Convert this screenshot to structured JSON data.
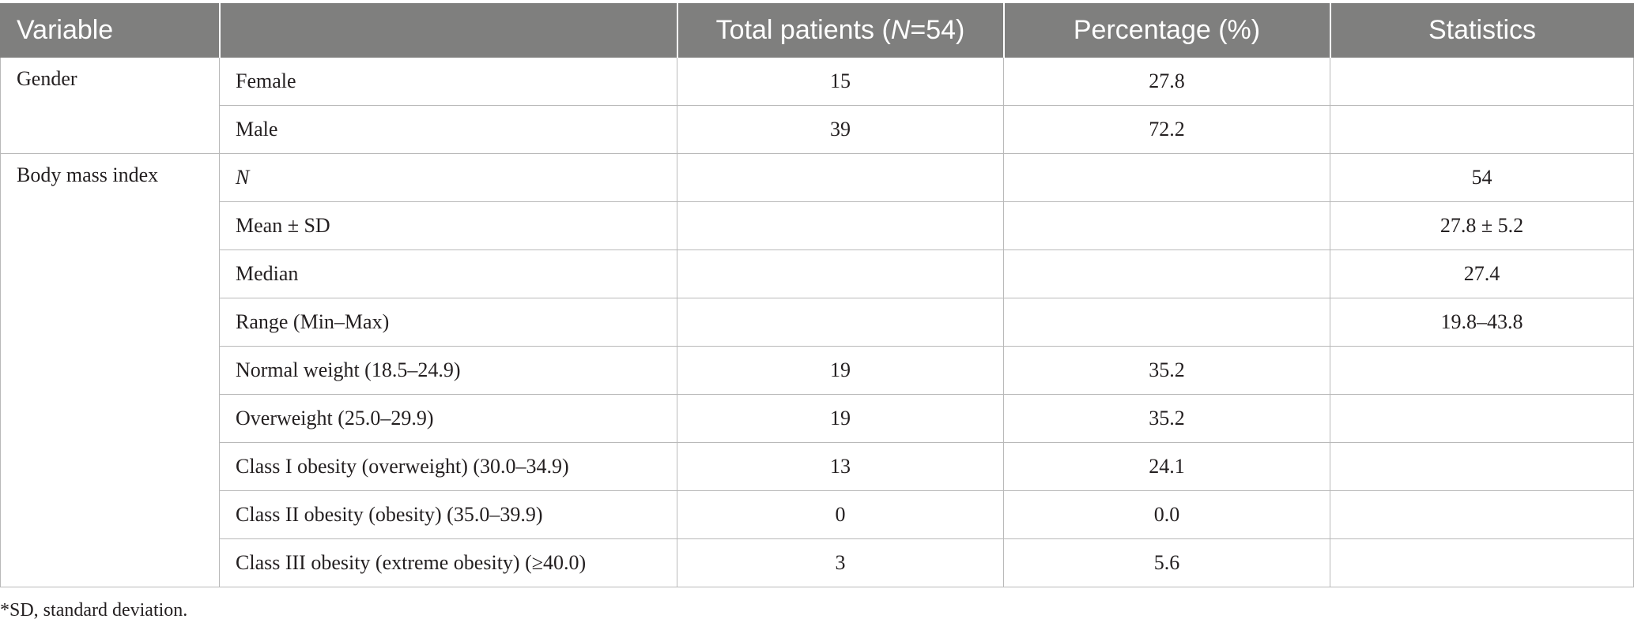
{
  "header": {
    "variable": "Variable",
    "category": "",
    "total_patients_prefix": "Total patients (",
    "total_patients_n": "N",
    "total_patients_suffix": "=54)",
    "percentage": "Percentage (%)",
    "statistics": "Statistics"
  },
  "groups": {
    "gender": "Gender",
    "bmi": "Body mass index"
  },
  "rows": [
    {
      "label": "Female",
      "total": "15",
      "percentage": "27.8",
      "statistics": ""
    },
    {
      "label": "Male",
      "total": "39",
      "percentage": "72.2",
      "statistics": ""
    },
    {
      "label": "N",
      "total": "",
      "percentage": "",
      "statistics": "54"
    },
    {
      "label": "Mean ± SD",
      "total": "",
      "percentage": "",
      "statistics": "27.8 ± 5.2"
    },
    {
      "label": "Median",
      "total": "",
      "percentage": "",
      "statistics": "27.4"
    },
    {
      "label": "Range (Min–Max)",
      "total": "",
      "percentage": "",
      "statistics": "19.8–43.8"
    },
    {
      "label": "Normal weight (18.5–24.9)",
      "total": "19",
      "percentage": "35.2",
      "statistics": ""
    },
    {
      "label": "Overweight (25.0–29.9)",
      "total": "19",
      "percentage": "35.2",
      "statistics": ""
    },
    {
      "label": "Class I obesity (overweight) (30.0–34.9)",
      "total": "13",
      "percentage": "24.1",
      "statistics": ""
    },
    {
      "label": "Class II obesity (obesity) (35.0–39.9)",
      "total": "0",
      "percentage": "0.0",
      "statistics": ""
    },
    {
      "label": "Class III obesity (extreme obesity) (≥40.0)",
      "total": "3",
      "percentage": "5.6",
      "statistics": ""
    }
  ],
  "footnote": "*SD, standard deviation."
}
